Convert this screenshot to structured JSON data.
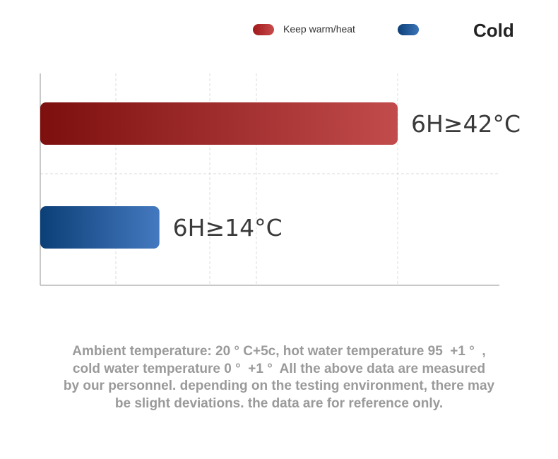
{
  "legend": {
    "warm": {
      "label": "Keep warm/heat",
      "color": "#b33a3a"
    },
    "cold": {
      "label": "Cold",
      "color": "#2f6aae"
    }
  },
  "chart_data": {
    "type": "bar",
    "orientation": "horizontal",
    "categories": [
      "Keep warm/heat",
      "Cold"
    ],
    "values": [
      42,
      14
    ],
    "data_labels": [
      "6H≥42°C",
      "6H≥14°C"
    ],
    "xlim": [
      0,
      56
    ],
    "grid": true,
    "legend_position": "top-right"
  },
  "note": {
    "line1": "Ambient temperature: 20 ° C+5c, hot water temperature 95 ︎ +1 ° ︎ ,",
    "line2": "cold water temperature 0 ° ︎ +1 ° ︎ All the above data are measured",
    "line3": "by our personnel. depending on the testing environment, there may",
    "line4": "be slight deviations. the data are for reference only."
  }
}
